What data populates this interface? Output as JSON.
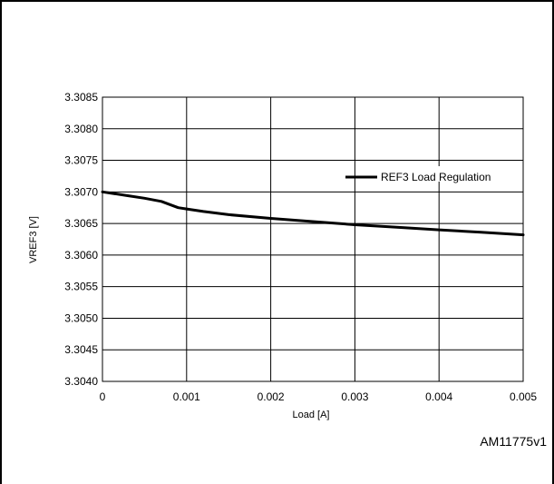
{
  "chart_data": {
    "type": "line",
    "xlabel": "Load [A]",
    "ylabel": "VREF3 [V]",
    "xlim": [
      0,
      0.005
    ],
    "ylim": [
      3.304,
      3.3085
    ],
    "x_ticks": [
      0,
      0.001,
      0.002,
      0.003,
      0.004,
      0.005
    ],
    "x_tick_labels": [
      "0",
      "0.001",
      "0.002",
      "0.003",
      "0.004",
      "0.005"
    ],
    "y_ticks": [
      3.304,
      3.3045,
      3.305,
      3.3055,
      3.306,
      3.3065,
      3.307,
      3.3075,
      3.308,
      3.3085
    ],
    "y_tick_labels": [
      "3.3040",
      "3.3045",
      "3.3050",
      "3.3055",
      "3.3060",
      "3.3065",
      "3.3070",
      "3.3075",
      "3.3080",
      "3.3085"
    ],
    "grid": true,
    "legend_position": "right",
    "series": [
      {
        "name": "REF3 Load Regulation",
        "color": "#000000",
        "x": [
          0,
          0.0003,
          0.0005,
          0.0007,
          0.0009,
          0.001,
          0.0012,
          0.0015,
          0.002,
          0.0025,
          0.003,
          0.0035,
          0.004,
          0.0045,
          0.005
        ],
        "y": [
          3.307,
          3.30694,
          3.3069,
          3.30685,
          3.30675,
          3.30673,
          3.30669,
          3.30664,
          3.30658,
          3.30653,
          3.30648,
          3.30644,
          3.3064,
          3.30636,
          3.30632
        ]
      }
    ]
  },
  "figure_code": "AM11775v1"
}
